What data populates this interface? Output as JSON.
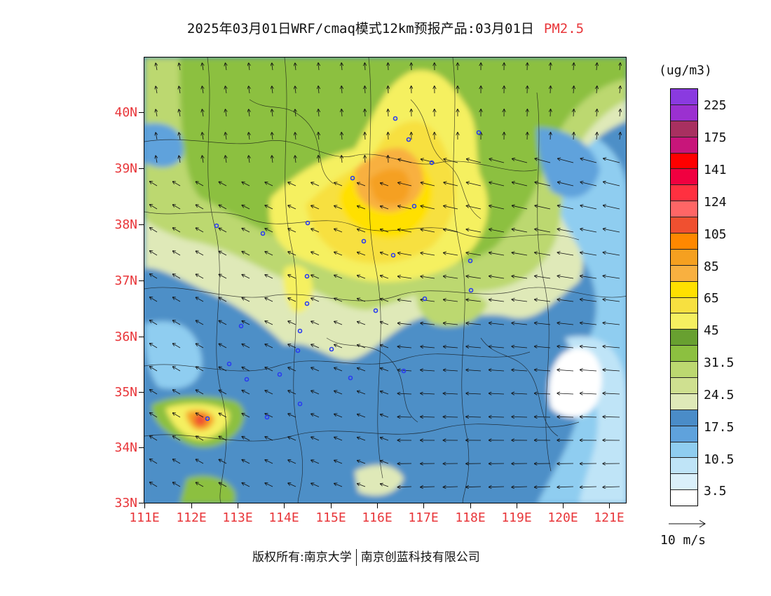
{
  "title": {
    "main": "2025年03月01日WRF/cmaq模式12km预报产品:03月01日",
    "pollutant": "PM2.5"
  },
  "map": {
    "lat_labels": [
      "40N",
      "39N",
      "38N",
      "37N",
      "36N",
      "35N",
      "34N",
      "33N"
    ],
    "lon_labels": [
      "111E",
      "112E",
      "113E",
      "114E",
      "115E",
      "116E",
      "117E",
      "118E",
      "119E",
      "120E",
      "121E"
    ],
    "lat_range": [
      33,
      41
    ],
    "lon_range": [
      111,
      121.4
    ],
    "wind_vectors": "yes"
  },
  "legend": {
    "unit": "(ug/m3)",
    "colors": [
      "#8a3ae0",
      "#9b30d0",
      "#a83060",
      "#c8157a",
      "#ff0000",
      "#f00040",
      "#ff3040",
      "#ff6666",
      "#f05030",
      "#ff8800",
      "#f5a020",
      "#f8b040",
      "#ffe000",
      "#f7e040",
      "#f5f060",
      "#68a030",
      "#8cc040",
      "#bcd870",
      "#cfe090",
      "#dfe9b8",
      "#4a8cc8",
      "#5fa2dc",
      "#8fcdf0",
      "#bfe4f7",
      "#daf0fa",
      "#ffffff"
    ],
    "labels": [
      "225",
      "175",
      "141",
      "124",
      "105",
      "85",
      "65",
      "45",
      "31.5",
      "24.5",
      "17.5",
      "10.5",
      "3.5"
    ]
  },
  "wind_scale": {
    "label": "10 m/s"
  },
  "footer": {
    "copyright": "版权所有:南京大学",
    "company": "南京创蓝科技有限公司"
  }
}
